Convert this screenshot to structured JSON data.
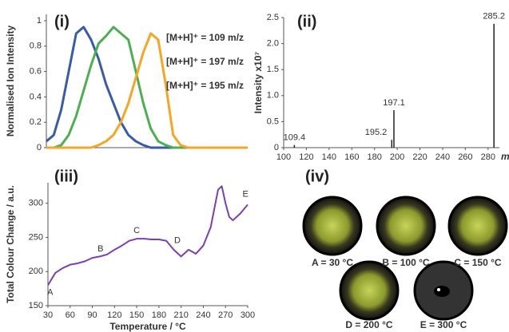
{
  "chart_data": [
    {
      "type": "line",
      "title": "(i)",
      "ylabel": "Normalised Ion Intensity",
      "x": [
        30,
        40,
        50,
        60,
        70,
        80,
        90,
        100,
        110,
        120,
        130,
        140,
        150,
        160,
        170,
        180,
        190,
        200,
        210,
        220,
        230,
        240,
        250,
        260,
        270,
        280,
        290,
        300
      ],
      "xlim": [
        30,
        300
      ],
      "ylim": [
        0,
        1.05
      ],
      "yticks": [
        0,
        0.2,
        0.4,
        0.6,
        0.8,
        1
      ],
      "series": [
        {
          "name": "[M+H]⁺ = 109 m/z",
          "color": "#3a5ca8",
          "values": [
            0.05,
            0.1,
            0.3,
            0.6,
            0.9,
            0.95,
            0.85,
            0.7,
            0.5,
            0.35,
            0.2,
            0.1,
            0.05,
            0.02,
            0,
            0,
            0,
            0,
            0,
            0,
            0,
            0,
            0,
            0,
            0,
            0,
            0,
            0
          ]
        },
        {
          "name": "[M+H]⁺ = 197 m/z",
          "color": "#4caf50",
          "values": [
            0,
            0,
            0.02,
            0.1,
            0.25,
            0.45,
            0.65,
            0.82,
            0.88,
            0.95,
            0.9,
            0.85,
            0.6,
            0.35,
            0.15,
            0.05,
            0.02,
            0,
            0,
            0,
            0,
            0,
            0,
            0,
            0,
            0,
            0,
            0
          ]
        },
        {
          "name": "[M+H]⁺ = 195 m/z",
          "color": "#f5a623",
          "values": [
            0,
            0,
            0,
            0,
            0,
            0,
            0,
            0.02,
            0.05,
            0.1,
            0.2,
            0.35,
            0.55,
            0.75,
            0.9,
            0.85,
            0.5,
            0.1,
            0.02,
            0,
            0,
            0,
            0,
            0,
            0,
            0,
            0,
            0
          ]
        }
      ]
    },
    {
      "type": "stem",
      "title": "(ii)",
      "ylabel": "Intensity x10⁷",
      "xlabel": "m/z",
      "xlim": [
        100,
        290
      ],
      "xticks": [
        100,
        120,
        140,
        160,
        180,
        200,
        220,
        240,
        260,
        280
      ],
      "ylim": [
        0,
        2.5
      ],
      "yticks": [
        0,
        0.5,
        {
          "value": 1,
          "label": "1.0"
        },
        1.5,
        {
          "value": 2,
          "label": "2.0"
        },
        2.5
      ],
      "color": "#222",
      "x": [
        109.4,
        195.2,
        197.1,
        285.2
      ],
      "values": [
        0.05,
        0.15,
        0.72,
        2.38
      ],
      "value_labels": [
        "109.4",
        "195.2",
        "197.1",
        "285.2"
      ]
    },
    {
      "type": "line",
      "title": "(iii)",
      "ylabel": "Total Colour Change / a.u.",
      "xlabel": "Temperature / °C",
      "xlim": [
        30,
        300
      ],
      "xticks": [
        30,
        60,
        90,
        120,
        150,
        180,
        210,
        240,
        270,
        300
      ],
      "ylim": [
        150,
        330
      ],
      "yticks": [
        150,
        200,
        250,
        300
      ],
      "x": [
        30,
        40,
        50,
        60,
        70,
        80,
        90,
        100,
        110,
        120,
        130,
        140,
        150,
        160,
        170,
        180,
        190,
        200,
        210,
        220,
        230,
        240,
        250,
        260,
        265,
        270,
        275,
        280,
        290,
        300
      ],
      "series": [
        {
          "color": "#7b3fb0",
          "values": [
            180,
            198,
            205,
            210,
            212,
            215,
            220,
            222,
            225,
            232,
            238,
            245,
            248,
            248,
            247,
            247,
            245,
            232,
            222,
            232,
            226,
            238,
            265,
            320,
            325,
            300,
            280,
            275,
            285,
            298
          ]
        }
      ],
      "annotations": [
        {
          "text": "A",
          "x": 33,
          "y": 169
        },
        {
          "text": "B",
          "x": 101,
          "y": 233
        },
        {
          "text": "C",
          "x": 150,
          "y": 260
        },
        {
          "text": "D",
          "x": 205,
          "y": 245
        },
        {
          "text": "E",
          "x": 297,
          "y": 313
        }
      ]
    }
  ],
  "images": {
    "label": "(iv)",
    "items": [
      "A = 30 °C",
      "B = 100 °C",
      "C = 150 °C",
      "D = 200 °C",
      "E = 300 °C"
    ]
  }
}
